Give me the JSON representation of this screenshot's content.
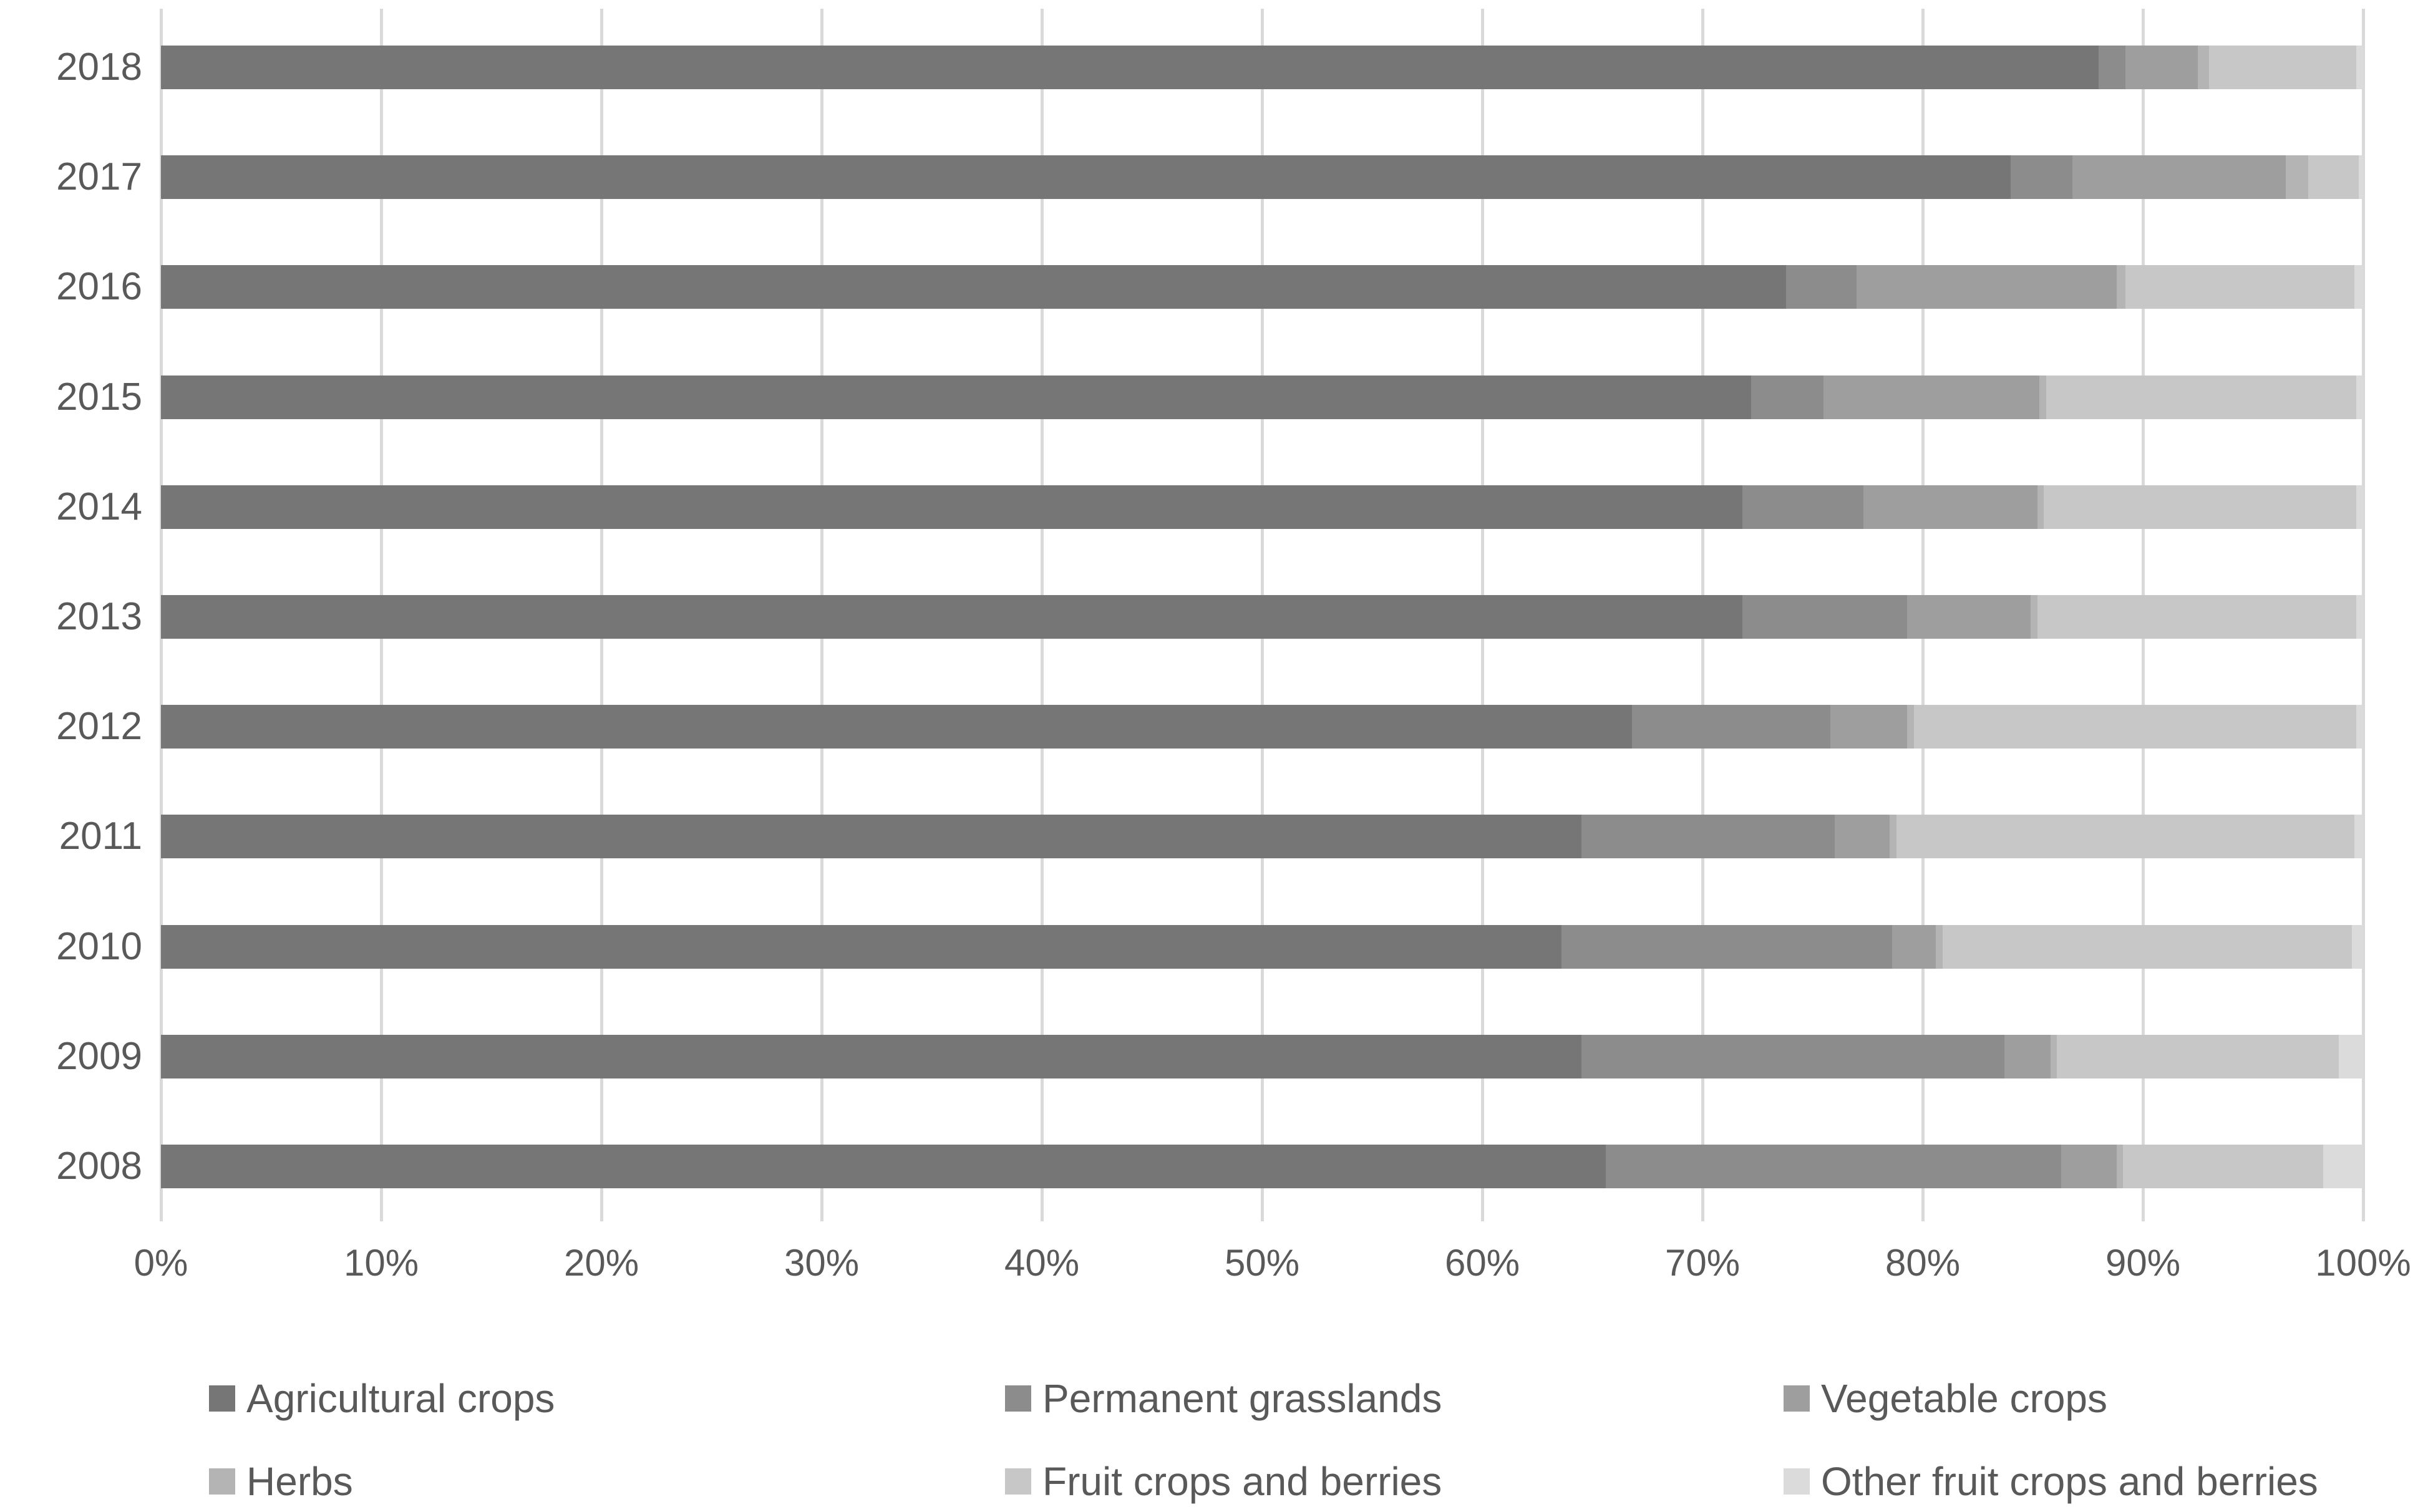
{
  "chart_data": {
    "type": "bar",
    "variant": "horizontal-stacked-100",
    "title": "",
    "categories": [
      "2018",
      "2017",
      "2016",
      "2015",
      "2014",
      "2013",
      "2012",
      "2011",
      "2010",
      "2009",
      "2008"
    ],
    "series": [
      {
        "name": "Agricultural crops",
        "color": "#767676",
        "values": [
          88.0,
          84.0,
          73.8,
          72.2,
          71.8,
          71.8,
          66.8,
          64.5,
          63.6,
          64.5,
          65.6
        ]
      },
      {
        "name": "Permanent grasslands",
        "color": "#8c8c8c",
        "values": [
          1.2,
          2.8,
          3.2,
          3.3,
          5.5,
          7.5,
          9.0,
          11.5,
          15.0,
          19.2,
          20.7
        ]
      },
      {
        "name": "Vegetable crops",
        "color": "#9e9e9e",
        "values": [
          3.3,
          9.7,
          11.8,
          9.8,
          7.9,
          5.6,
          3.5,
          2.5,
          2.0,
          2.1,
          2.5
        ]
      },
      {
        "name": "Herbs",
        "color": "#b4b4b4",
        "values": [
          0.5,
          1.0,
          0.4,
          0.3,
          0.3,
          0.3,
          0.3,
          0.3,
          0.3,
          0.3,
          0.3
        ]
      },
      {
        "name": "Fruit crops and berries",
        "color": "#c7c7c7",
        "values": [
          6.7,
          2.3,
          10.4,
          14.1,
          14.2,
          14.5,
          20.1,
          20.8,
          18.6,
          12.8,
          9.1
        ]
      },
      {
        "name": "Other fruit crops and berries",
        "color": "#dbdbdb",
        "values": [
          0.3,
          0.2,
          0.4,
          0.3,
          0.3,
          0.3,
          0.3,
          0.4,
          0.5,
          1.1,
          1.8
        ]
      }
    ],
    "x_axis": {
      "min": 0,
      "max": 100,
      "tick_step": 10,
      "tick_labels": [
        "0%",
        "10%",
        "20%",
        "30%",
        "40%",
        "50%",
        "60%",
        "70%",
        "80%",
        "90%",
        "100%"
      ]
    },
    "grid": true,
    "legend_position": "bottom",
    "legend_rows": [
      [
        "Agricultural crops",
        "Permanent grasslands",
        "Vegetable crops"
      ],
      [
        "Herbs",
        "Fruit crops and berries",
        "Other fruit crops and berries"
      ]
    ]
  },
  "styles": {
    "background": "#ffffff",
    "text_color": "#595959",
    "gridline_color": "#d9d9d9"
  }
}
